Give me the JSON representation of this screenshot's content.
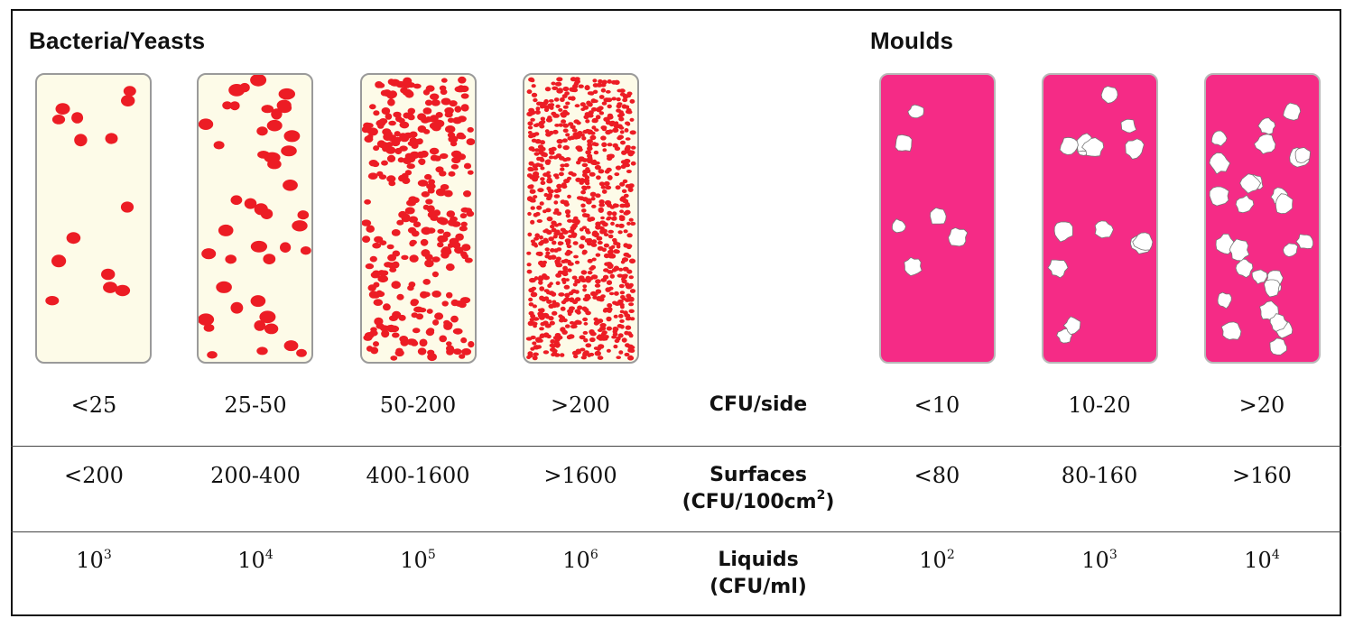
{
  "headings": {
    "bacteria": "Bacteria/Yeasts",
    "moulds": "Moulds"
  },
  "colors": {
    "bacteria_bg": "#fdfbe8",
    "bacteria_dot": "#ec1c24",
    "mould_bg": "#f52b86",
    "mould_colony": "#ffffff"
  },
  "rows": [
    {
      "label": "CFU/side",
      "bacteria": [
        "<25",
        "25-50",
        "50-200",
        ">200"
      ],
      "moulds": [
        "<10",
        "10-20",
        ">20"
      ]
    },
    {
      "label_line1": "Surfaces",
      "label_line2": "(CFU/100cm",
      "label_sup": "2",
      "label_end": ")",
      "bacteria": [
        "<200",
        "200-400",
        "400-1600",
        ">1600"
      ],
      "moulds": [
        "<80",
        "80-160",
        ">160"
      ]
    },
    {
      "label_line1": "Liquids",
      "label_line2": "(CFU/ml)",
      "base": "10",
      "bacteria_exp": [
        "3",
        "4",
        "5",
        "6"
      ],
      "moulds_exp": [
        "2",
        "3",
        "4"
      ]
    }
  ],
  "slides": {
    "bacteria_dot_counts": [
      14,
      45,
      320,
      900
    ],
    "mould_colony_counts": [
      6,
      14,
      28
    ]
  }
}
